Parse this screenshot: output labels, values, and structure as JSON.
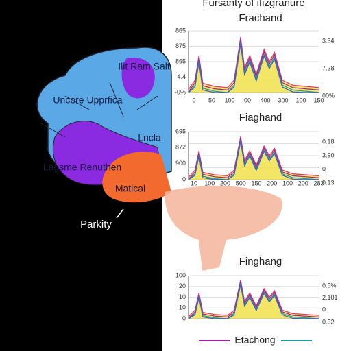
{
  "title": "Fursanty of ifizgranure",
  "brain_labels": [
    "Ilit Ram Salt",
    "Uncore Upprfica",
    "Lncla",
    "Lagsme Renuthen",
    "Matical",
    "Parkity"
  ],
  "panels": [
    {
      "title": "Frachand",
      "y_labels": [
        "865",
        "875",
        "865",
        "4.4",
        "-0%"
      ],
      "x_labels": [
        "0",
        "50",
        "100",
        "00",
        "400",
        "300",
        "100",
        "150"
      ],
      "right_labels": [
        "3.34",
        "7.28",
        "00%"
      ]
    },
    {
      "title": "Fiaghand",
      "y_labels": [
        "695",
        "872",
        "900",
        "0"
      ],
      "x_labels": [
        "10",
        "100",
        "200",
        "500",
        "150",
        "200",
        "100",
        "200",
        "283"
      ],
      "right_labels": [
        "0.18",
        "3.90",
        "0",
        "0.13"
      ]
    },
    {
      "title": "Finghang",
      "y_labels": [
        "100",
        "20",
        "10",
        "10",
        "0"
      ],
      "x_labels": [],
      "right_labels": [
        "0.5%",
        "2.101",
        "0",
        "0.32"
      ]
    }
  ],
  "legend": "Etachong"
}
